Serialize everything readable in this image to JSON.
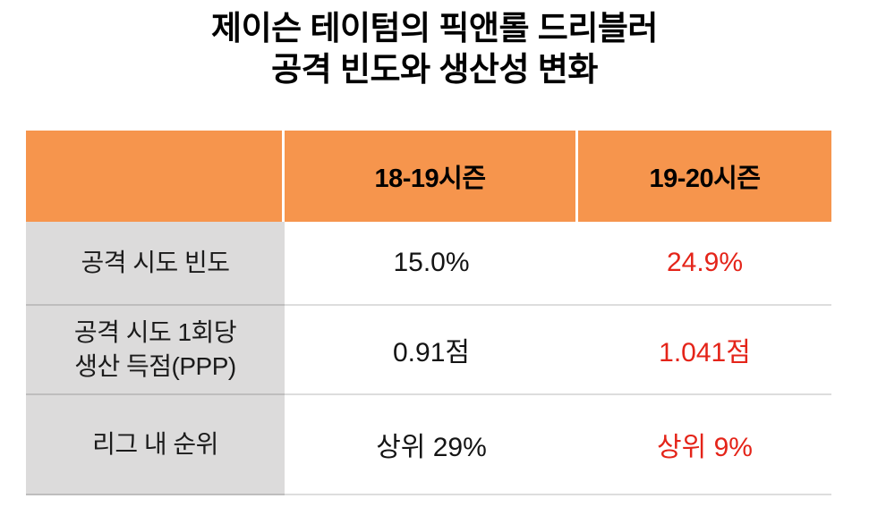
{
  "title": {
    "line1": "제이슨 테이텀의 픽앤롤 드리블러",
    "line2": "공격 빈도와 생산성 변화"
  },
  "table": {
    "columns": [
      "",
      "18-19시즌",
      "19-20시즌"
    ],
    "rows": [
      {
        "label": "공격 시도 빈도",
        "season1": "15.0%",
        "season2": "24.9%"
      },
      {
        "label": "공격 시도 1회당\n생산 득점(PPP)",
        "season1": "0.91점",
        "season2": "1.041점"
      },
      {
        "label": "리그 내 순위",
        "season1": "상위 29%",
        "season2": "상위 9%"
      }
    ]
  },
  "colors": {
    "header_bg": "#F6954D",
    "label_bg": "#DCDBDB",
    "highlight_text": "#E42419",
    "body_text": "#141414",
    "title_text": "#000000",
    "divider": "#D4D4D4"
  },
  "chart_data": {
    "type": "table",
    "title": "제이슨 테이텀의 픽앤롤 드리블러 공격 빈도와 생산성 변화",
    "columns": [
      "",
      "18-19시즌",
      "19-20시즌"
    ],
    "rows": [
      [
        "공격 시도 빈도",
        "15.0%",
        "24.9%"
      ],
      [
        "공격 시도 1회당 생산 득점(PPP)",
        "0.91점",
        "1.041점"
      ],
      [
        "리그 내 순위",
        "상위 29%",
        "상위 9%"
      ]
    ],
    "highlight_column": "19-20시즌",
    "highlight_color": "#E42419",
    "notes": "values in highlighted 19-20 season column are rendered in red; row labels on gray background; header row on orange background"
  }
}
